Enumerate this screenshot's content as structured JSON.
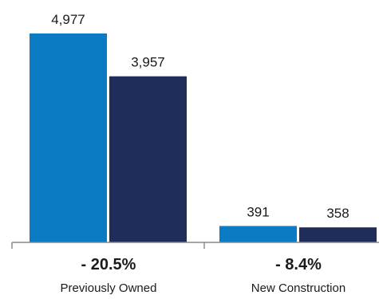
{
  "chart_data": {
    "type": "bar",
    "categories": [
      "Previously Owned",
      "New Construction"
    ],
    "series": [
      {
        "values": [
          4977,
          391
        ],
        "value_labels": [
          "4,977",
          "391"
        ],
        "color": "#0b7bc4"
      },
      {
        "values": [
          3957,
          358
        ],
        "value_labels": [
          "3,957",
          "358"
        ],
        "color": "#1f2d5a"
      }
    ],
    "change_labels": [
      "- 20.5%",
      "- 8.4%"
    ],
    "ylim": [
      0,
      5000
    ],
    "grid": false,
    "legend": "none",
    "axis_color": "#8a8a8a"
  }
}
